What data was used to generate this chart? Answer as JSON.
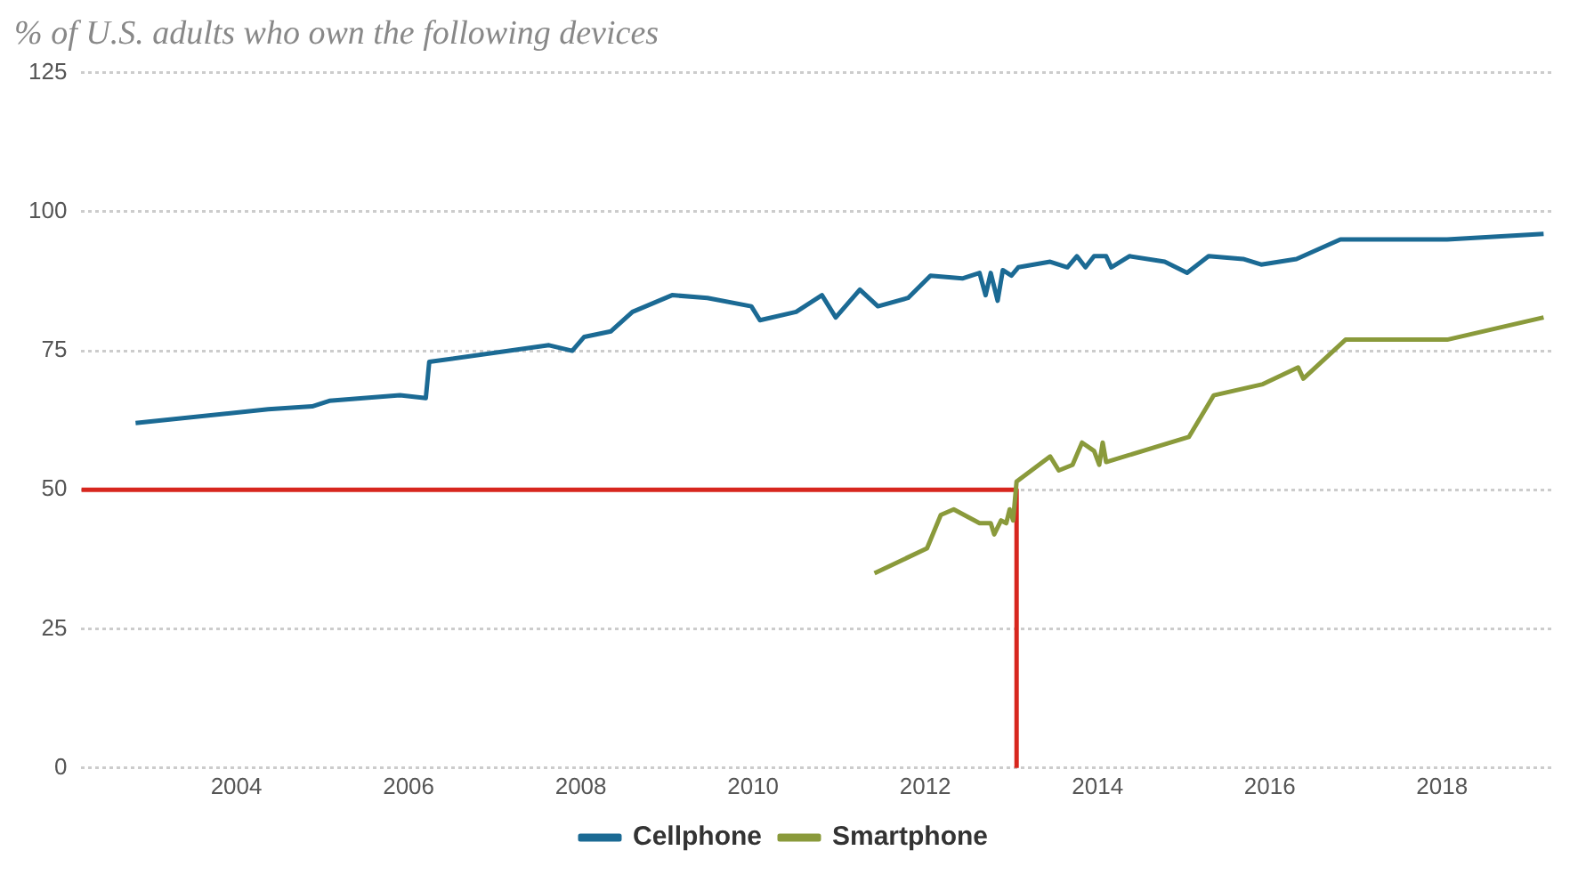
{
  "chart_data": {
    "type": "line",
    "title": "% of U.S. adults who own the following devices",
    "xlim": [
      2002.2,
      2019.3
    ],
    "xticks": [
      2004,
      2006,
      2008,
      2010,
      2012,
      2014,
      2016,
      2018
    ],
    "ylim": [
      0,
      125
    ],
    "yticks": [
      0,
      25,
      50,
      75,
      100,
      125
    ],
    "grid": "y",
    "legend": "bottom",
    "marker": "none",
    "line_style": "solid",
    "series": [
      {
        "name": "Cellphone",
        "color": "#1b6a94",
        "x": [
          2002.83,
          2004.37,
          2004.88,
          2005.08,
          2005.9,
          2006.2,
          2006.24,
          2007.63,
          2007.9,
          2008.04,
          2008.35,
          2008.6,
          2009.06,
          2009.47,
          2009.98,
          2010.08,
          2010.5,
          2010.8,
          2010.96,
          2011.24,
          2011.45,
          2011.8,
          2012.06,
          2012.43,
          2012.63,
          2012.7,
          2012.76,
          2012.84,
          2012.9,
          2013.0,
          2013.08,
          2013.45,
          2013.65,
          2013.76,
          2013.86,
          2013.96,
          2014.1,
          2014.16,
          2014.37,
          2014.78,
          2015.04,
          2015.29,
          2015.69,
          2015.9,
          2016.31,
          2016.82,
          2018.06,
          2019.18
        ],
        "values": [
          62,
          64.5,
          65,
          66,
          67,
          66.5,
          73,
          76,
          75,
          77.5,
          78.5,
          82,
          85,
          84.5,
          83,
          80.5,
          82,
          85,
          81,
          86,
          83,
          84.5,
          88.5,
          88,
          89,
          85,
          89,
          84,
          89.5,
          88.5,
          90,
          91,
          90,
          92,
          90,
          92,
          92,
          90,
          92,
          91,
          89,
          92,
          91.5,
          90.5,
          91.5,
          95,
          95,
          96
        ]
      },
      {
        "name": "Smartphone",
        "color": "#8a9a3b",
        "x": [
          2011.41,
          2012.02,
          2012.18,
          2012.33,
          2012.63,
          2012.76,
          2012.8,
          2012.88,
          2012.94,
          2012.98,
          2013.02,
          2013.06,
          2013.45,
          2013.55,
          2013.71,
          2013.82,
          2013.96,
          2014.02,
          2014.06,
          2014.1,
          2015.06,
          2015.35,
          2015.92,
          2016.33,
          2016.39,
          2016.88,
          2018.06,
          2019.18
        ],
        "values": [
          35,
          39.5,
          45.5,
          46.5,
          44,
          44,
          42,
          44.5,
          44,
          46.5,
          44.5,
          51.5,
          56,
          53.5,
          54.5,
          58.5,
          57,
          54.5,
          58.5,
          55,
          59.5,
          67,
          69,
          72,
          70,
          77,
          77,
          81
        ]
      },
      {
        "color": "#d7261e",
        "x": [
          2002.2,
          2013.06,
          2013.06
        ],
        "values": [
          50,
          50,
          0
        ]
      }
    ]
  }
}
